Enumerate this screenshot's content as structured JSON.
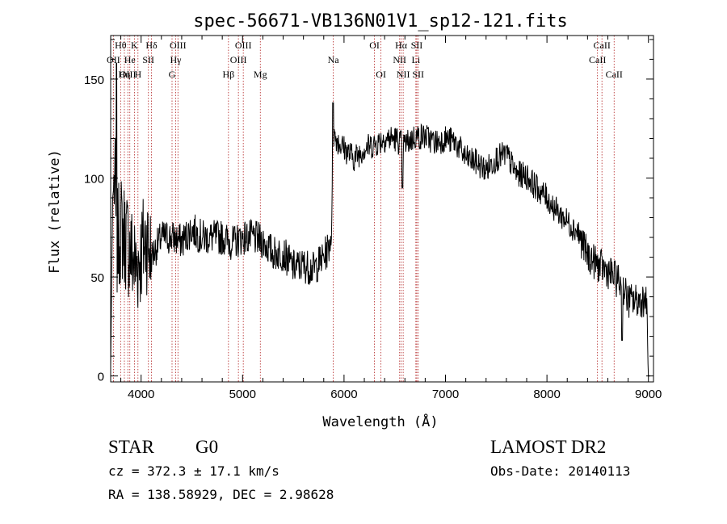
{
  "chart_data": {
    "type": "line",
    "title": "spec-56671-VB136N01V1_sp12-121.fits",
    "xlabel": "Wavelength (Å)",
    "ylabel": "Flux (relative)",
    "xlim": [
      3700,
      9050
    ],
    "ylim": [
      -3,
      172
    ],
    "xticks": [
      4000,
      5000,
      6000,
      7000,
      8000,
      9000
    ],
    "yticks": [
      0,
      50,
      100,
      150
    ],
    "grid": false,
    "line_color": "#000000",
    "marker_color": "#b22222",
    "spectrum_anchors": {
      "x": [
        3700,
        3720,
        3740,
        3760,
        3800,
        3850,
        3900,
        3950,
        4000,
        4050,
        4100,
        4200,
        4300,
        4400,
        4500,
        4600,
        4700,
        4800,
        4900,
        5000,
        5100,
        5200,
        5300,
        5400,
        5500,
        5600,
        5700,
        5800,
        5850,
        5880,
        5890,
        5900,
        5950,
        6000,
        6100,
        6200,
        6300,
        6400,
        6500,
        6560,
        6600,
        6700,
        6800,
        6900,
        7000,
        7100,
        7200,
        7300,
        7400,
        7500,
        7600,
        7700,
        7800,
        7900,
        8000,
        8100,
        8200,
        8300,
        8400,
        8500,
        8600,
        8700,
        8750,
        8800,
        8900,
        8980,
        9000,
        9020
      ],
      "y": [
        5,
        90,
        100,
        65,
        75,
        70,
        62,
        55,
        62,
        70,
        60,
        70,
        70,
        68,
        74,
        70,
        70,
        70,
        67,
        70,
        70,
        68,
        62,
        62,
        55,
        56,
        54,
        60,
        65,
        75,
        110,
        122,
        118,
        115,
        110,
        115,
        117,
        120,
        120,
        118,
        117,
        121,
        121,
        118,
        120,
        118,
        110,
        108,
        104,
        110,
        112,
        102,
        101,
        95,
        90,
        83,
        78,
        73,
        61,
        56,
        53,
        48,
        45,
        38,
        38,
        39,
        0,
        0
      ]
    },
    "spectral_lines": [
      {
        "label": "Hθ",
        "wavelength": 3798,
        "row": 0
      },
      {
        "label": "OII",
        "wavelength": 3727,
        "row": 1
      },
      {
        "label": "OIII",
        "wavelength": 3869,
        "row": 2
      },
      {
        "label": "K",
        "wavelength": 3934,
        "row": 0
      },
      {
        "label": "He",
        "wavelength": 3889,
        "row": 1
      },
      {
        "label": "Hη",
        "wavelength": 3835,
        "row": 2
      },
      {
        "label": "Hδ",
        "wavelength": 4102,
        "row": 0
      },
      {
        "label": "SII",
        "wavelength": 4072,
        "row": 1
      },
      {
        "label": "H",
        "wavelength": 3969,
        "row": 2
      },
      {
        "label": "OIII",
        "wavelength": 4363,
        "row": 0
      },
      {
        "label": "Hγ",
        "wavelength": 4341,
        "row": 1
      },
      {
        "label": "G",
        "wavelength": 4305,
        "row": 2
      },
      {
        "label": "OIII",
        "wavelength": 5007,
        "row": 0
      },
      {
        "label": "OIII",
        "wavelength": 4959,
        "row": 1
      },
      {
        "label": "Hβ",
        "wavelength": 4861,
        "row": 2
      },
      {
        "label": "Mg",
        "wavelength": 5175,
        "row": 2
      },
      {
        "label": "Na",
        "wavelength": 5894,
        "row": 1
      },
      {
        "label": "OI",
        "wavelength": 6300,
        "row": 0
      },
      {
        "label": "OI",
        "wavelength": 6364,
        "row": 2
      },
      {
        "label": "Hα",
        "wavelength": 6563,
        "row": 0
      },
      {
        "label": "NII",
        "wavelength": 6548,
        "row": 1
      },
      {
        "label": "NII",
        "wavelength": 6583,
        "row": 2
      },
      {
        "label": "SII",
        "wavelength": 6717,
        "row": 0
      },
      {
        "label": "Li",
        "wavelength": 6708,
        "row": 1
      },
      {
        "label": "SII",
        "wavelength": 6731,
        "row": 2
      },
      {
        "label": "CaII",
        "wavelength": 8542,
        "row": 0
      },
      {
        "label": "CaII",
        "wavelength": 8498,
        "row": 1
      },
      {
        "label": "CaII",
        "wavelength": 8662,
        "row": 2
      }
    ]
  },
  "info": {
    "object_class": "STAR",
    "subclass": "G0",
    "survey": "LAMOST DR2",
    "redshift_line": "cz = 372.3 ± 17.1 km/s",
    "obs_date": "Obs-Date: 20140113",
    "coords": "RA = 138.58929, DEC =    2.98628"
  }
}
